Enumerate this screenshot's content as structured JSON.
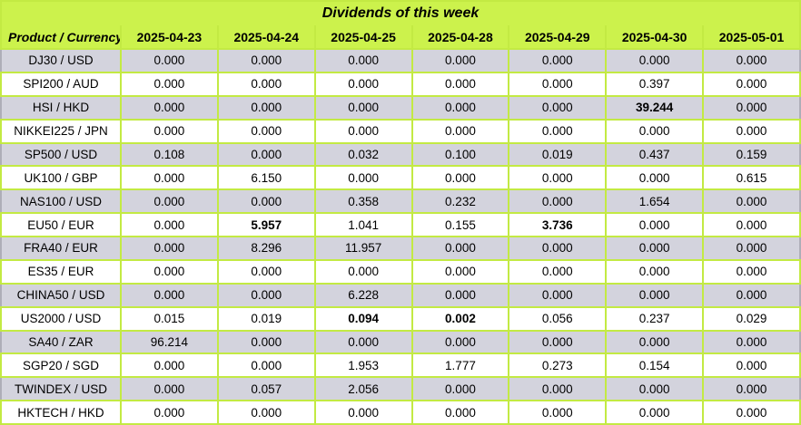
{
  "chart_data": {
    "type": "table",
    "title": "Dividends of this week",
    "columns": [
      "Product / Currency",
      "2025-04-23",
      "2025-04-24",
      "2025-04-25",
      "2025-04-28",
      "2025-04-29",
      "2025-04-30",
      "2025-05-01"
    ],
    "rows": [
      {
        "product": "DJ30 / USD",
        "values": [
          "0.000",
          "0.000",
          "0.000",
          "0.000",
          "0.000",
          "0.000",
          "0.000"
        ],
        "bold_value_indices": []
      },
      {
        "product": "SPI200 / AUD",
        "values": [
          "0.000",
          "0.000",
          "0.000",
          "0.000",
          "0.000",
          "0.397",
          "0.000"
        ],
        "bold_value_indices": []
      },
      {
        "product": "HSI / HKD",
        "values": [
          "0.000",
          "0.000",
          "0.000",
          "0.000",
          "0.000",
          "39.244",
          "0.000"
        ],
        "bold_value_indices": [
          5
        ]
      },
      {
        "product": "NIKKEI225 / JPN",
        "values": [
          "0.000",
          "0.000",
          "0.000",
          "0.000",
          "0.000",
          "0.000",
          "0.000"
        ],
        "bold_value_indices": []
      },
      {
        "product": "SP500 / USD",
        "values": [
          "0.108",
          "0.000",
          "0.032",
          "0.100",
          "0.019",
          "0.437",
          "0.159"
        ],
        "bold_value_indices": []
      },
      {
        "product": "UK100 / GBP",
        "values": [
          "0.000",
          "6.150",
          "0.000",
          "0.000",
          "0.000",
          "0.000",
          "0.615"
        ],
        "bold_value_indices": []
      },
      {
        "product": "NAS100 / USD",
        "values": [
          "0.000",
          "0.000",
          "0.358",
          "0.232",
          "0.000",
          "1.654",
          "0.000"
        ],
        "bold_value_indices": []
      },
      {
        "product": "EU50 / EUR",
        "values": [
          "0.000",
          "5.957",
          "1.041",
          "0.155",
          "3.736",
          "0.000",
          "0.000"
        ],
        "bold_value_indices": [
          1,
          4
        ]
      },
      {
        "product": "FRA40 / EUR",
        "values": [
          "0.000",
          "8.296",
          "11.957",
          "0.000",
          "0.000",
          "0.000",
          "0.000"
        ],
        "bold_value_indices": []
      },
      {
        "product": "ES35 / EUR",
        "values": [
          "0.000",
          "0.000",
          "0.000",
          "0.000",
          "0.000",
          "0.000",
          "0.000"
        ],
        "bold_value_indices": []
      },
      {
        "product": "CHINA50 / USD",
        "values": [
          "0.000",
          "0.000",
          "6.228",
          "0.000",
          "0.000",
          "0.000",
          "0.000"
        ],
        "bold_value_indices": []
      },
      {
        "product": "US2000 / USD",
        "values": [
          "0.015",
          "0.019",
          "0.094",
          "0.002",
          "0.056",
          "0.237",
          "0.029"
        ],
        "bold_value_indices": [
          2,
          3
        ]
      },
      {
        "product": "SA40 / ZAR",
        "values": [
          "96.214",
          "0.000",
          "0.000",
          "0.000",
          "0.000",
          "0.000",
          "0.000"
        ],
        "bold_value_indices": []
      },
      {
        "product": "SGP20 / SGD",
        "values": [
          "0.000",
          "0.000",
          "1.953",
          "1.777",
          "0.273",
          "0.154",
          "0.000"
        ],
        "bold_value_indices": []
      },
      {
        "product": "TWINDEX / USD",
        "values": [
          "0.000",
          "0.057",
          "2.056",
          "0.000",
          "0.000",
          "0.000",
          "0.000"
        ],
        "bold_value_indices": []
      },
      {
        "product": "HKTECH / HKD",
        "values": [
          "0.000",
          "0.000",
          "0.000",
          "0.000",
          "0.000",
          "0.000",
          "0.000"
        ],
        "bold_value_indices": []
      }
    ],
    "layout": {
      "first_row_shade": "gray",
      "row_shading": "alternating gray/white"
    }
  },
  "colors": {
    "header_bg": "#ccf24c",
    "grid_border": "#c3ea43",
    "row_gray_bg": "#d3d3dd",
    "row_white_bg": "#ffffff",
    "text": "#000000"
  }
}
